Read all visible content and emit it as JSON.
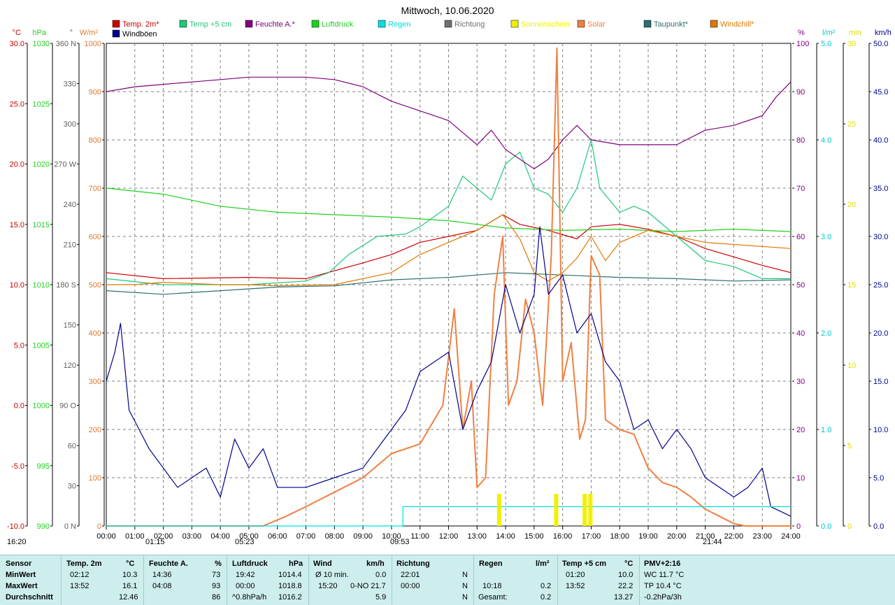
{
  "chart_data": {
    "type": "line",
    "title": "Mittwoch, 10.06.2020",
    "x_ticks": [
      "00:00",
      "01:00",
      "02:00",
      "03:00",
      "04:00",
      "05:00",
      "06:00",
      "07:00",
      "08:00",
      "09:00",
      "10:00",
      "11:00",
      "12:00",
      "13:00",
      "14:00",
      "15:00",
      "16:00",
      "17:00",
      "18:00",
      "19:00",
      "20:00",
      "21:00",
      "22:00",
      "23:00",
      "24:00"
    ],
    "legend": [
      {
        "name": "Temp. 2m*",
        "color": "#cc0000"
      },
      {
        "name": "Temp +5 cm",
        "color": "#1ec878"
      },
      {
        "name": "Feuchte A.*",
        "color": "#800080"
      },
      {
        "name": "Luftdruck",
        "color": "#1ed21e"
      },
      {
        "name": "Regen",
        "color": "#00e0e0"
      },
      {
        "name": "Richtung",
        "color": "#707070"
      },
      {
        "name": "Sonnenschein",
        "color": "#f0f000"
      },
      {
        "name": "Solar",
        "color": "#f08040"
      },
      {
        "name": "Taupunkt*",
        "color": "#2e6e6e"
      },
      {
        "name": "Windchill*",
        "color": "#e07800"
      },
      {
        "name": "Windböen",
        "color": "#000090"
      }
    ],
    "axes_left": [
      {
        "unit": "°C",
        "color": "#cc0000",
        "ticks": [
          "30.0",
          "25.0",
          "20.0",
          "15.0",
          "10.0",
          "5.0",
          "0.0",
          "-5.0",
          "-10.0"
        ],
        "range": [
          -10,
          30
        ]
      },
      {
        "unit": "hPa",
        "color": "#1ed21e",
        "ticks": [
          "1030",
          "1025",
          "1020",
          "1015",
          "1010",
          "1005",
          "1000",
          "995",
          "990"
        ],
        "range": [
          990,
          1030
        ]
      },
      {
        "unit": "°",
        "color": "#606060",
        "ticks": [
          "360 N",
          "330",
          "300",
          "270 W",
          "240",
          "210",
          "180 S",
          "150",
          "120",
          "90 O",
          "60",
          "30",
          "0 N"
        ],
        "range": [
          0,
          360
        ]
      },
      {
        "unit": "W/m²",
        "color": "#e07830",
        "ticks": [
          "1000",
          "900",
          "800",
          "700",
          "600",
          "500",
          "400",
          "300",
          "200",
          "100",
          "0"
        ],
        "range": [
          0,
          1000
        ]
      }
    ],
    "axes_right": [
      {
        "unit": "%",
        "color": "#800080",
        "ticks": [
          "100",
          "90",
          "80",
          "70",
          "60",
          "50",
          "40",
          "30",
          "20",
          "10",
          "0"
        ],
        "range": [
          0,
          100
        ]
      },
      {
        "unit": "l/m²",
        "color": "#00c8c8",
        "ticks": [
          "5.0",
          "4.0",
          "3.0",
          "2.0",
          "1.0",
          "0.0"
        ],
        "range": [
          0,
          5
        ]
      },
      {
        "unit": "min",
        "color": "#e0e000",
        "ticks": [
          "30",
          "25",
          "20",
          "15",
          "10",
          "5",
          "0"
        ],
        "range": [
          0,
          30
        ]
      },
      {
        "unit": "km/h",
        "color": "#000090",
        "ticks": [
          "50.0",
          "45.0",
          "40.0",
          "35.0",
          "30.0",
          "25.0",
          "20.0",
          "15.0",
          "10.0",
          "5.0",
          "0.0"
        ],
        "range": [
          0,
          50
        ]
      }
    ],
    "series": [
      {
        "name": "Temp. 2m*",
        "axis": "°C",
        "color": "#cc0000",
        "points": [
          [
            0,
            11
          ],
          [
            2,
            10.5
          ],
          [
            5,
            10.6
          ],
          [
            7,
            10.5
          ],
          [
            9,
            11.8
          ],
          [
            10,
            12.5
          ],
          [
            11,
            13.5
          ],
          [
            12,
            14
          ],
          [
            13,
            14.5
          ],
          [
            13.9,
            15.8
          ],
          [
            14.5,
            15
          ],
          [
            15.5,
            14.5
          ],
          [
            16.5,
            13.8
          ],
          [
            17,
            14.8
          ],
          [
            18,
            15
          ],
          [
            19,
            14.6
          ],
          [
            20,
            14
          ],
          [
            21,
            13
          ],
          [
            22,
            12.3
          ],
          [
            23,
            11.6
          ],
          [
            24,
            11
          ]
        ]
      },
      {
        "name": "Temp +5 cm",
        "axis": "°C",
        "color": "#1ec878",
        "points": [
          [
            0,
            10.5
          ],
          [
            2,
            10.0
          ],
          [
            5,
            10.0
          ],
          [
            7,
            10.3
          ],
          [
            7.8,
            11
          ],
          [
            8.5,
            12.5
          ],
          [
            9.5,
            14
          ],
          [
            10.5,
            14.2
          ],
          [
            11,
            14.8
          ],
          [
            12,
            16.5
          ],
          [
            12.5,
            19
          ],
          [
            13,
            18
          ],
          [
            13.5,
            17
          ],
          [
            14,
            20
          ],
          [
            14.5,
            21
          ],
          [
            15,
            18
          ],
          [
            15.5,
            17.5
          ],
          [
            16,
            16
          ],
          [
            16.5,
            18
          ],
          [
            17,
            22
          ],
          [
            17.3,
            18
          ],
          [
            18,
            16
          ],
          [
            18.5,
            16.5
          ],
          [
            19,
            16
          ],
          [
            20,
            14
          ],
          [
            21,
            12
          ],
          [
            22,
            11.5
          ],
          [
            23,
            10.5
          ],
          [
            24,
            10.5
          ]
        ]
      },
      {
        "name": "Feuchte A.*",
        "axis": "%",
        "color": "#800080",
        "points": [
          [
            0,
            90
          ],
          [
            1,
            91
          ],
          [
            2,
            91.5
          ],
          [
            3,
            92
          ],
          [
            4,
            92.5
          ],
          [
            5,
            93
          ],
          [
            7,
            93
          ],
          [
            8,
            92.5
          ],
          [
            9,
            91
          ],
          [
            10,
            88
          ],
          [
            11,
            86
          ],
          [
            12,
            84
          ],
          [
            13,
            79
          ],
          [
            13.5,
            82
          ],
          [
            14,
            78
          ],
          [
            15,
            74
          ],
          [
            15.5,
            76
          ],
          [
            16,
            80
          ],
          [
            16.5,
            83
          ],
          [
            17,
            80
          ],
          [
            18,
            79
          ],
          [
            19,
            79
          ],
          [
            20,
            79
          ],
          [
            21,
            82
          ],
          [
            22,
            83
          ],
          [
            23,
            85
          ],
          [
            23.5,
            89
          ],
          [
            24,
            92
          ]
        ]
      },
      {
        "name": "Luftdruck",
        "axis": "hPa",
        "color": "#1ed21e",
        "points": [
          [
            0,
            1018
          ],
          [
            2,
            1017.5
          ],
          [
            4,
            1016.5
          ],
          [
            6,
            1016
          ],
          [
            8,
            1015.8
          ],
          [
            10,
            1015.6
          ],
          [
            12,
            1015.3
          ],
          [
            13,
            1015
          ],
          [
            14,
            1014.7
          ],
          [
            16,
            1014.5
          ],
          [
            18,
            1014.6
          ],
          [
            20,
            1014.4
          ],
          [
            22,
            1014.6
          ],
          [
            24,
            1014.4
          ]
        ]
      },
      {
        "name": "Taupunkt*",
        "axis": "°C",
        "color": "#2e6e6e",
        "points": [
          [
            0,
            9.5
          ],
          [
            2,
            9.2
          ],
          [
            4,
            9.5
          ],
          [
            6,
            9.8
          ],
          [
            8,
            9.9
          ],
          [
            10,
            10.4
          ],
          [
            12,
            10.6
          ],
          [
            13,
            10.8
          ],
          [
            14,
            11
          ],
          [
            16,
            10.8
          ],
          [
            18,
            10.6
          ],
          [
            20,
            10.5
          ],
          [
            22,
            10.3
          ],
          [
            24,
            10.4
          ]
        ]
      },
      {
        "name": "Windchill*",
        "axis": "°C",
        "color": "#e07800",
        "points": [
          [
            0,
            10
          ],
          [
            1,
            10
          ],
          [
            2,
            10.2
          ],
          [
            4,
            10
          ],
          [
            5,
            10
          ],
          [
            6,
            9.9
          ],
          [
            8,
            10
          ],
          [
            10,
            11
          ],
          [
            11,
            12.5
          ],
          [
            12,
            13.5
          ],
          [
            13,
            14.5
          ],
          [
            13.9,
            15.8
          ],
          [
            14.5,
            13.8
          ],
          [
            15,
            11
          ],
          [
            15.5,
            10.3
          ],
          [
            16,
            11
          ],
          [
            16.5,
            12.2
          ],
          [
            17,
            14
          ],
          [
            17.5,
            12
          ],
          [
            18,
            13.5
          ],
          [
            19,
            14.5
          ],
          [
            20,
            14
          ],
          [
            21,
            13.5
          ],
          [
            24,
            13
          ]
        ]
      },
      {
        "name": "Solar",
        "axis": "W/m²",
        "color": "#f08040",
        "points": [
          [
            0,
            0
          ],
          [
            5.5,
            0
          ],
          [
            6.3,
            20
          ],
          [
            7,
            40
          ],
          [
            8,
            70
          ],
          [
            9,
            100
          ],
          [
            10,
            150
          ],
          [
            11,
            170
          ],
          [
            11.8,
            250
          ],
          [
            12.2,
            450
          ],
          [
            12.5,
            200
          ],
          [
            12.8,
            300
          ],
          [
            13,
            80
          ],
          [
            13.3,
            100
          ],
          [
            13.6,
            480
          ],
          [
            13.9,
            600
          ],
          [
            14.1,
            250
          ],
          [
            14.4,
            300
          ],
          [
            14.7,
            470
          ],
          [
            15,
            400
          ],
          [
            15.3,
            250
          ],
          [
            15.6,
            560
          ],
          [
            15.8,
            990
          ],
          [
            16,
            300
          ],
          [
            16.3,
            380
          ],
          [
            16.6,
            180
          ],
          [
            16.8,
            220
          ],
          [
            17,
            560
          ],
          [
            17.3,
            520
          ],
          [
            17.5,
            220
          ],
          [
            18,
            200
          ],
          [
            18.5,
            190
          ],
          [
            19,
            120
          ],
          [
            19.5,
            90
          ],
          [
            20,
            80
          ],
          [
            20.5,
            60
          ],
          [
            21,
            35
          ],
          [
            21.5,
            20
          ],
          [
            22,
            5
          ],
          [
            22.4,
            0
          ],
          [
            24,
            0
          ]
        ]
      },
      {
        "name": "Windböen",
        "axis": "km/h",
        "color": "#000090",
        "points": [
          [
            0,
            15
          ],
          [
            0.3,
            18
          ],
          [
            0.5,
            21
          ],
          [
            0.8,
            12
          ],
          [
            1.5,
            8
          ],
          [
            2.5,
            4
          ],
          [
            3,
            5
          ],
          [
            3.5,
            6
          ],
          [
            4,
            3
          ],
          [
            4.5,
            9
          ],
          [
            5,
            6
          ],
          [
            5.5,
            8
          ],
          [
            6,
            4
          ],
          [
            7,
            4
          ],
          [
            8,
            5
          ],
          [
            9,
            6
          ],
          [
            10,
            10
          ],
          [
            10.5,
            12
          ],
          [
            11,
            16
          ],
          [
            12,
            18
          ],
          [
            12.5,
            10
          ],
          [
            13,
            14
          ],
          [
            13.5,
            17
          ],
          [
            14,
            25
          ],
          [
            14.5,
            20
          ],
          [
            15,
            24
          ],
          [
            15.2,
            31
          ],
          [
            15.5,
            24
          ],
          [
            16,
            26
          ],
          [
            16.5,
            20
          ],
          [
            17,
            22
          ],
          [
            17.5,
            17
          ],
          [
            18,
            15
          ],
          [
            18.5,
            10
          ],
          [
            19,
            11
          ],
          [
            19.5,
            8
          ],
          [
            20,
            10
          ],
          [
            20.5,
            8
          ],
          [
            21,
            5
          ],
          [
            21.5,
            4
          ],
          [
            22,
            3
          ],
          [
            22.5,
            4
          ],
          [
            23,
            6
          ],
          [
            23.3,
            2
          ],
          [
            24,
            1
          ]
        ]
      },
      {
        "name": "Regen",
        "axis": "l/m²",
        "color": "#00e0e0",
        "points": [
          [
            0,
            0
          ],
          [
            10.4,
            0
          ],
          [
            10.4,
            0.2
          ],
          [
            24,
            0.2
          ]
        ]
      },
      {
        "name": "Sonnenschein",
        "axis": "min",
        "color": "#f0f000",
        "bars": [
          [
            13.7,
            2
          ],
          [
            15.7,
            2
          ],
          [
            16.7,
            2
          ],
          [
            16.9,
            2
          ]
        ]
      }
    ],
    "marker_labels": [
      {
        "time": "16:20",
        "text": "16:20"
      },
      {
        "time": "01:15",
        "text": "01:15"
      },
      {
        "time": "05:23",
        "text": "05:23"
      },
      {
        "time": "09:53",
        "text": "09:53"
      },
      {
        "time": "21:44",
        "text": "21:44"
      }
    ]
  },
  "stats": {
    "row_labels": [
      "Sensor",
      "MinWert",
      "MaxWert",
      "Durchschnitt"
    ],
    "temp": {
      "title": "Temp. 2m",
      "unit": "°C",
      "min_time": "02:12",
      "min": "10.3",
      "max_time": "13:52",
      "max": "16.1",
      "avg": "12.46"
    },
    "feuchte": {
      "title": "Feuchte A.",
      "unit": "%",
      "min_time": "14:36",
      "min": "73",
      "max_time": "04:08",
      "max": "93",
      "avg": "86"
    },
    "druck": {
      "title": "Luftdruck",
      "unit": "hPa",
      "min_time": "19:42",
      "min": "1014.4",
      "max_time": "00:00",
      "max": "1018.8",
      "avg_label": "^0.8hPa/h",
      "avg": "1016.2"
    },
    "wind": {
      "title": "Wind",
      "unit": "km/h",
      "min_label": "Ø 10 min.",
      "min": "0.0",
      "max_time": "15:20",
      "max": "0-NO 21.7",
      "avg": "5.9"
    },
    "richtung": {
      "title": "Richtung",
      "min_time": "22:01",
      "min": "N",
      "max_time": "00:00",
      "max": "N",
      "avg": "N"
    },
    "regen": {
      "title": "Regen",
      "unit": "l/m²",
      "max_time": "10:18",
      "max": "0.2",
      "avg_label": "Gesamt:",
      "avg": "0.2"
    },
    "temp5": {
      "title": "Temp +5 cm",
      "unit": "°C",
      "min_time": "01:20",
      "min": "10.0",
      "max_time": "13:52",
      "max": "22.2",
      "avg": "13.27"
    },
    "pmv": {
      "title": "PMV+2:16",
      "wc": "WC 11.7 °C",
      "tp": "TP 10.4 °C",
      "trend": "-0.2hPa/3h"
    }
  }
}
